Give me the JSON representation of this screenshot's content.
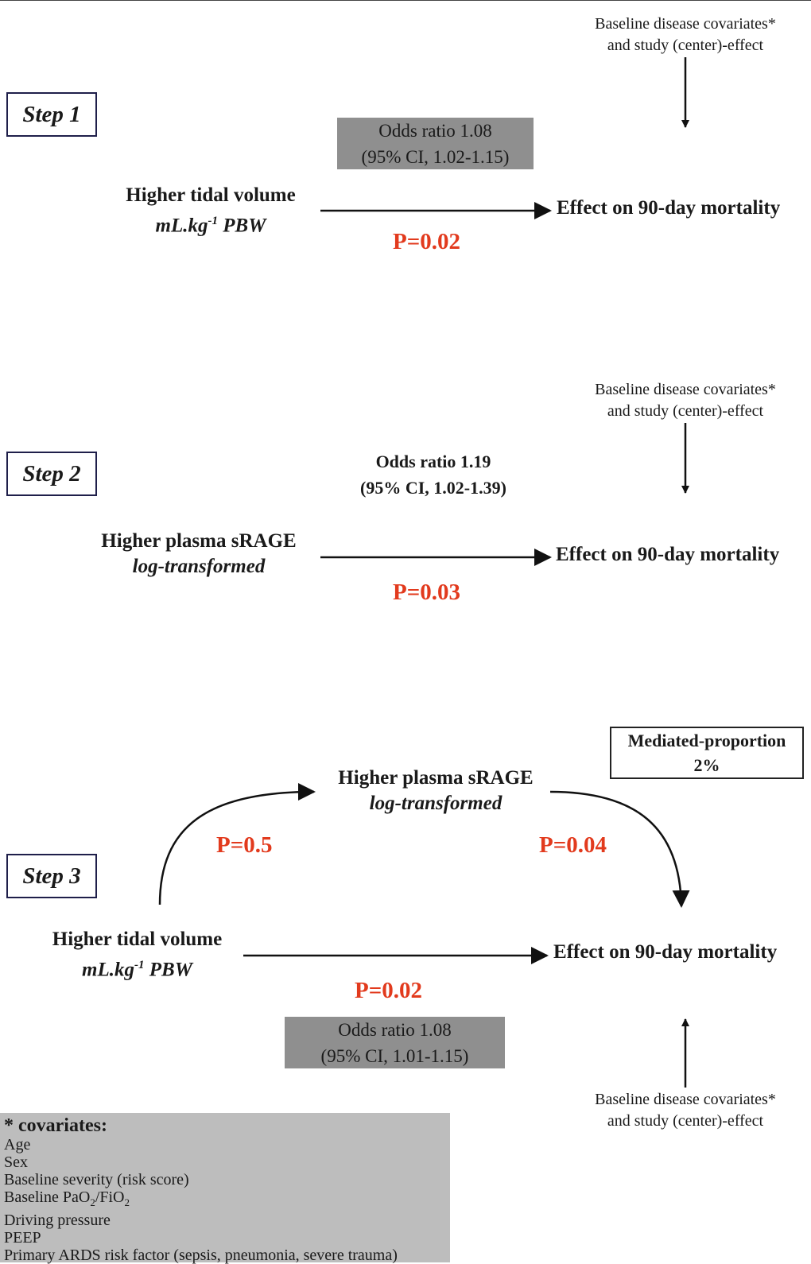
{
  "covariates_note": {
    "line1": "Baseline disease covariates*",
    "line2": "and study (center)-effect"
  },
  "step1": {
    "label": "Step 1",
    "odds_ratio": "Odds ratio 1.08",
    "ci": "(95% CI, 1.02-1.15)",
    "exposure": "Higher tidal volume",
    "exposure_unit_pre": "mL.kg",
    "exposure_unit_sup": "-1",
    "exposure_unit_post": " PBW",
    "outcome": "Effect on 90-day mortality",
    "p_value": "P=0.02"
  },
  "step2": {
    "label": "Step 2",
    "odds_ratio": "Odds ratio 1.19",
    "ci": "(95% CI, 1.02-1.39)",
    "exposure": "Higher plasma sRAGE",
    "exposure_unit": "log-transformed",
    "outcome": "Effect on 90-day mortality",
    "p_value": "P=0.03"
  },
  "step3": {
    "label": "Step 3",
    "mediated_title": "Mediated-proportion",
    "mediated_value": "2%",
    "mediator": "Higher plasma sRAGE",
    "mediator_unit": "log-transformed",
    "p_left": "P=0.5",
    "p_right": "P=0.04",
    "exposure": "Higher tidal volume",
    "exposure_unit_pre": "mL.kg",
    "exposure_unit_sup": "-1",
    "exposure_unit_post": " PBW",
    "outcome": "Effect on 90-day mortality",
    "p_value": "P=0.02",
    "odds_ratio": "Odds ratio 1.08",
    "ci": "(95% CI, 1.01-1.15)"
  },
  "covariates_panel": {
    "title": "* covariates:",
    "items": [
      "Age",
      "Sex",
      "Baseline severity (risk score)",
      "Baseline PaO2/FiO2",
      "Driving pressure",
      "PEEP",
      "Primary ARDS risk factor (sepsis, pneumonia, severe trauma)"
    ],
    "pao2_parts": [
      "Baseline PaO",
      "2",
      "/FiO",
      "2"
    ]
  },
  "colors": {
    "p_value_red": "#e23a1d",
    "grey_box": "#8f8f8f",
    "covariate_panel": "#bdbdbd",
    "step_box_border": "#1f1f4a"
  }
}
